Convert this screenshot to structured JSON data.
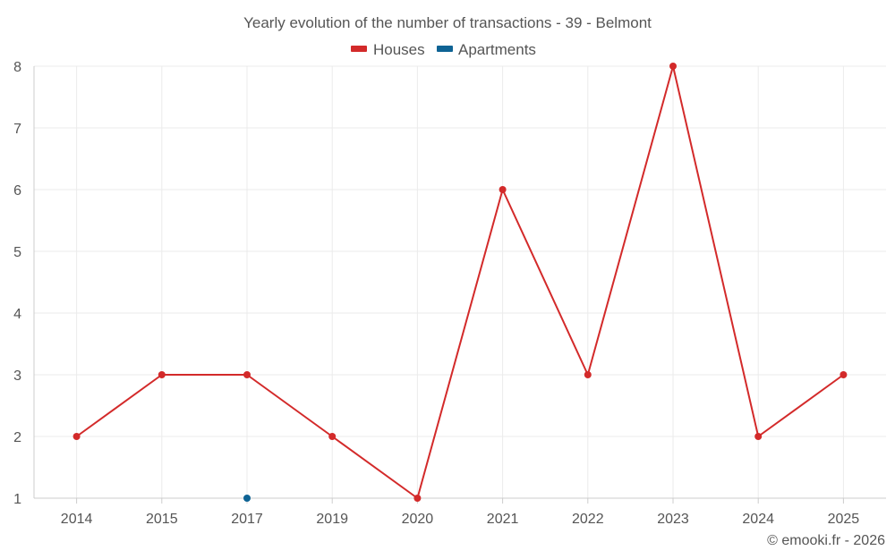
{
  "colors": {
    "houses": "#d32a2a",
    "apartments": "#0e6394"
  },
  "chart_data": {
    "type": "line",
    "title": "Yearly evolution of the number of transactions - 39 - Belmont",
    "categories": [
      "2014",
      "2015",
      "2017",
      "2019",
      "2020",
      "2021",
      "2022",
      "2023",
      "2024",
      "2025"
    ],
    "series": [
      {
        "name": "Houses",
        "color": "#d32a2a",
        "values": [
          2,
          3,
          3,
          2,
          1,
          6,
          3,
          8,
          2,
          3
        ]
      },
      {
        "name": "Apartments",
        "color": "#0e6394",
        "values": [
          null,
          null,
          1,
          null,
          null,
          null,
          null,
          null,
          null,
          null
        ]
      }
    ],
    "ylim": [
      1,
      8
    ],
    "yticks": [
      1,
      2,
      3,
      4,
      5,
      6,
      7,
      8
    ],
    "xlabel": "",
    "ylabel": "",
    "grid": true,
    "legend": "top-center"
  },
  "credit": "© emooki.fr - 2026"
}
